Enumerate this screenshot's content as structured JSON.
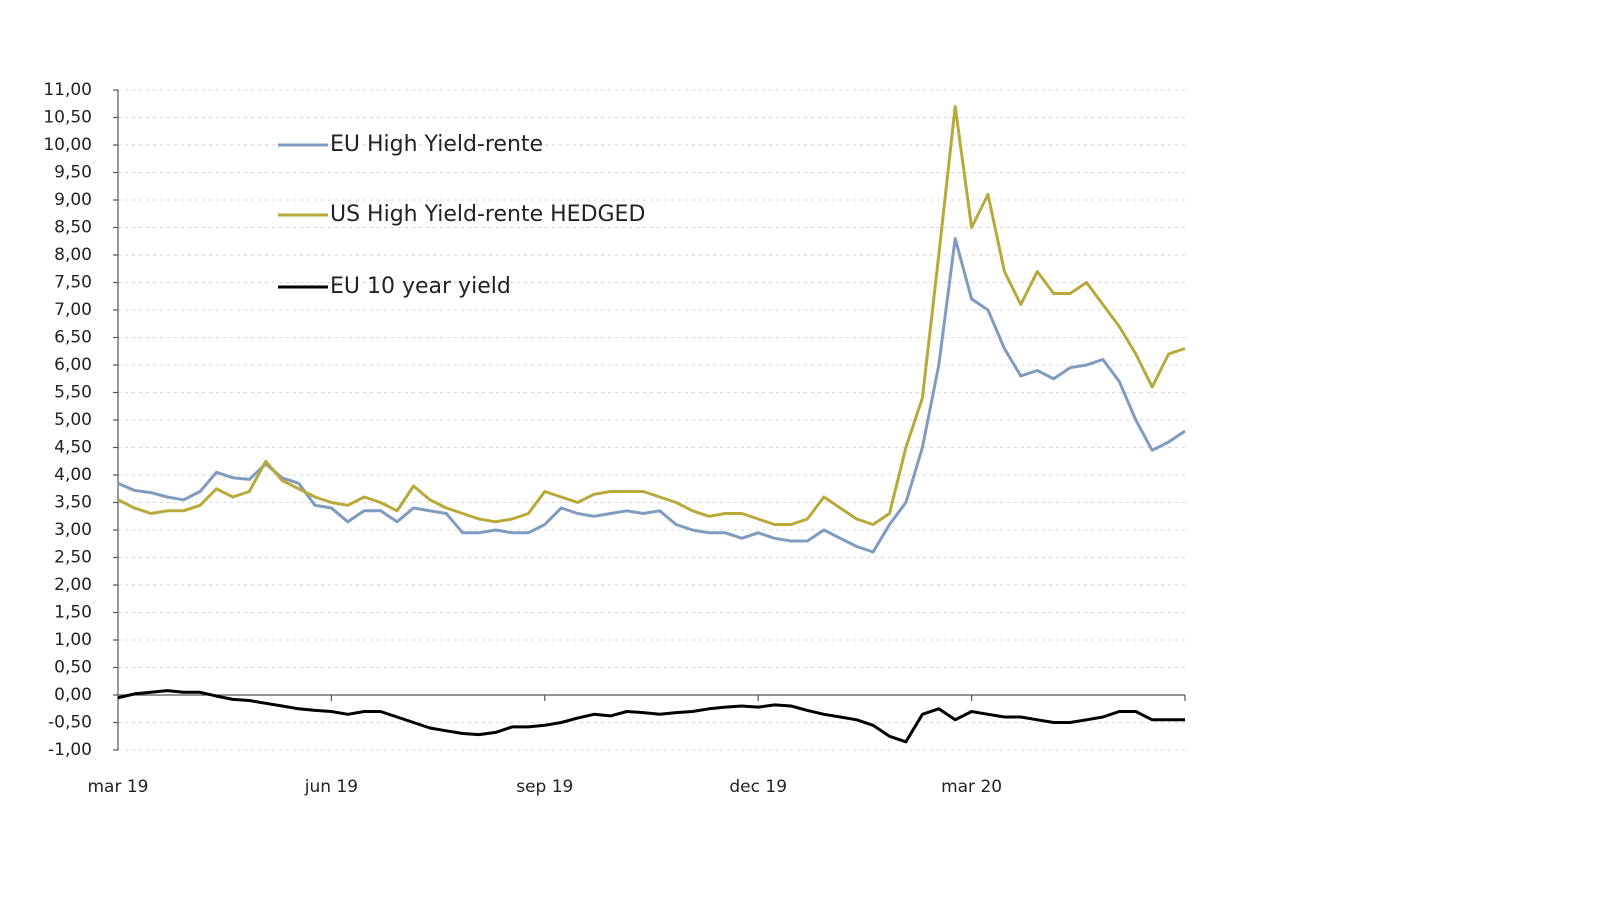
{
  "chart_data": {
    "type": "line",
    "categories": [
      "mar 19",
      null,
      null,
      null,
      null,
      null,
      null,
      null,
      null,
      null,
      null,
      null,
      null,
      "jun 19",
      null,
      null,
      null,
      null,
      null,
      null,
      null,
      null,
      null,
      null,
      null,
      null,
      "sep 19",
      null,
      null,
      null,
      null,
      null,
      null,
      null,
      null,
      null,
      null,
      null,
      null,
      "dec 19",
      null,
      null,
      null,
      null,
      null,
      null,
      null,
      null,
      null,
      null,
      null,
      null,
      "mar 20",
      null,
      null,
      null,
      null,
      null,
      null,
      null,
      null,
      null,
      null,
      null,
      null,
      null
    ],
    "series": [
      {
        "name": "EU High Yield-rente",
        "color": "#7f9bbf",
        "values": [
          3.85,
          3.72,
          3.68,
          3.6,
          3.55,
          3.7,
          4.05,
          3.95,
          3.92,
          4.2,
          3.95,
          3.85,
          3.45,
          3.4,
          3.15,
          3.35,
          3.35,
          3.15,
          3.4,
          3.35,
          3.3,
          2.95,
          2.95,
          3.0,
          2.95,
          2.95,
          3.1,
          3.4,
          3.3,
          3.25,
          3.3,
          3.35,
          3.3,
          3.35,
          3.1,
          3.0,
          2.95,
          2.95,
          2.85,
          2.95,
          2.85,
          2.8,
          2.8,
          3.0,
          2.85,
          2.7,
          2.6,
          3.1,
          3.5,
          4.5,
          6.0,
          8.3,
          7.2,
          7.0,
          6.3,
          5.8,
          5.9,
          5.75,
          5.95,
          6.0,
          6.1,
          5.7,
          5.0,
          4.45,
          4.6,
          4.8
        ]
      },
      {
        "name": "US High Yield-rente HEDGED",
        "color": "#b8a93a",
        "values": [
          3.55,
          3.4,
          3.3,
          3.35,
          3.35,
          3.45,
          3.75,
          3.6,
          3.7,
          4.25,
          3.9,
          3.75,
          3.6,
          3.5,
          3.45,
          3.6,
          3.5,
          3.35,
          3.8,
          3.55,
          3.4,
          3.3,
          3.2,
          3.15,
          3.2,
          3.3,
          3.7,
          3.6,
          3.5,
          3.65,
          3.7,
          3.7,
          3.7,
          3.6,
          3.5,
          3.35,
          3.25,
          3.3,
          3.3,
          3.2,
          3.1,
          3.1,
          3.2,
          3.6,
          3.4,
          3.2,
          3.1,
          3.3,
          4.5,
          5.4,
          8.0,
          10.7,
          8.5,
          9.1,
          7.7,
          7.1,
          7.7,
          7.3,
          7.3,
          7.5,
          7.1,
          6.7,
          6.2,
          5.6,
          6.2,
          6.3
        ]
      },
      {
        "name": "EU 10 year yield",
        "color": "#000000",
        "values": [
          -0.05,
          0.02,
          0.05,
          0.08,
          0.05,
          0.05,
          -0.02,
          -0.08,
          -0.1,
          -0.15,
          -0.2,
          -0.25,
          -0.28,
          -0.3,
          -0.35,
          -0.3,
          -0.3,
          -0.4,
          -0.5,
          -0.6,
          -0.65,
          -0.7,
          -0.72,
          -0.68,
          -0.58,
          -0.58,
          -0.55,
          -0.5,
          -0.42,
          -0.35,
          -0.38,
          -0.3,
          -0.32,
          -0.35,
          -0.32,
          -0.3,
          -0.25,
          -0.22,
          -0.2,
          -0.22,
          -0.18,
          -0.2,
          -0.28,
          -0.35,
          -0.4,
          -0.45,
          -0.55,
          -0.75,
          -0.85,
          -0.35,
          -0.25,
          -0.45,
          -0.3,
          -0.35,
          -0.4,
          -0.4,
          -0.45,
          -0.5,
          -0.5,
          -0.45,
          -0.4,
          -0.3,
          -0.3,
          -0.45,
          -0.45,
          -0.45
        ]
      }
    ],
    "ylim": [
      -1,
      11
    ],
    "yticks": [
      {
        "value": -1,
        "label": "-1,00"
      },
      {
        "value": -0.5,
        "label": "-0,50"
      },
      {
        "value": 0,
        "label": "0,00"
      },
      {
        "value": 0.5,
        "label": "0,50"
      },
      {
        "value": 1,
        "label": "1,00"
      },
      {
        "value": 1.5,
        "label": "1,50"
      },
      {
        "value": 2,
        "label": "2,00"
      },
      {
        "value": 2.5,
        "label": "2,50"
      },
      {
        "value": 3,
        "label": "3,00"
      },
      {
        "value": 3.5,
        "label": "3,50"
      },
      {
        "value": 4,
        "label": "4,00"
      },
      {
        "value": 4.5,
        "label": "4,50"
      },
      {
        "value": 5,
        "label": "5,00"
      },
      {
        "value": 5.5,
        "label": "5,50"
      },
      {
        "value": 6,
        "label": "6,00"
      },
      {
        "value": 6.5,
        "label": "6,50"
      },
      {
        "value": 7,
        "label": "7,00"
      },
      {
        "value": 7.5,
        "label": "7,50"
      },
      {
        "value": 8,
        "label": "8,00"
      },
      {
        "value": 8.5,
        "label": "8,50"
      },
      {
        "value": 9,
        "label": "9,00"
      },
      {
        "value": 9.5,
        "label": "9,50"
      },
      {
        "value": 10,
        "label": "10,00"
      },
      {
        "value": 10.5,
        "label": "10,50"
      },
      {
        "value": 11,
        "label": "11,00"
      }
    ],
    "grid": true,
    "legend": "upper left"
  }
}
